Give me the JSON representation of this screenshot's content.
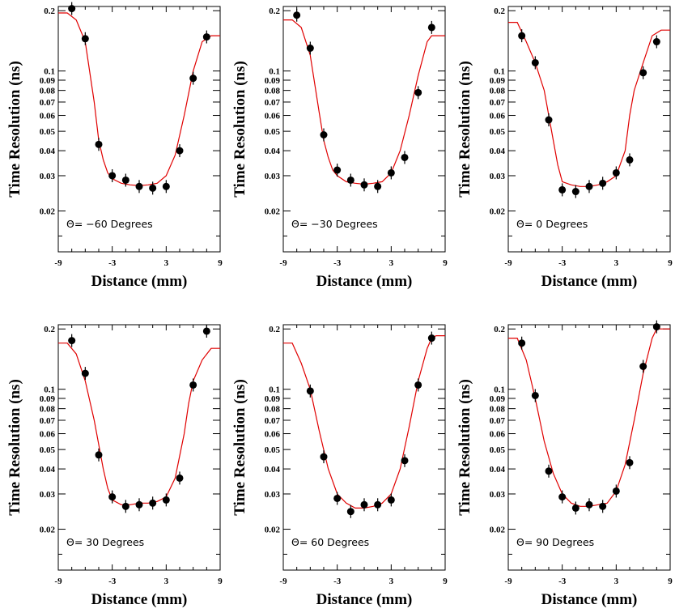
{
  "chart_data": [
    {
      "type": "scatter",
      "annotation": "Θ= −60 Degrees",
      "xlabel": "Distance (mm)",
      "ylabel": "Time Resolution (ns)",
      "xlim": [
        -9,
        9
      ],
      "ylim": [
        0.0125,
        0.21
      ],
      "yscale": "log",
      "xticks": [
        "-9",
        "-3",
        "3",
        "9"
      ],
      "yticks": [
        "0.02",
        "0.03",
        "0.04",
        "0.05",
        "0.06",
        "0.07",
        "0.08",
        "0.09",
        "0.1",
        "0.2"
      ],
      "grid": false,
      "colors": {
        "points": "#000000",
        "fit": "#e00000"
      },
      "series": [
        {
          "type": "points",
          "x": [
            -7.5,
            -6,
            -4.5,
            -3,
            -1.5,
            0,
            1.5,
            3,
            4.5,
            6,
            7.5
          ],
          "y": [
            0.205,
            0.145,
            0.043,
            0.03,
            0.0285,
            0.0265,
            0.026,
            0.0265,
            0.04,
            0.092,
            0.148
          ]
        },
        {
          "type": "fit",
          "x": [
            -9,
            -8,
            -7,
            -6,
            -5,
            -4.5,
            -4,
            -3.5,
            -3,
            -2,
            -1,
            0,
            1,
            2,
            3,
            4,
            5,
            6,
            7,
            8,
            9
          ],
          "y": [
            0.195,
            0.195,
            0.18,
            0.14,
            0.07,
            0.045,
            0.036,
            0.031,
            0.029,
            0.0275,
            0.027,
            0.0268,
            0.027,
            0.0275,
            0.03,
            0.038,
            0.06,
            0.1,
            0.14,
            0.15,
            0.15
          ]
        }
      ]
    },
    {
      "type": "scatter",
      "annotation": "Θ= −30 Degrees",
      "xlabel": "Distance (mm)",
      "ylabel": "Time Resolution (ns)",
      "xlim": [
        -9,
        9
      ],
      "ylim": [
        0.0125,
        0.21
      ],
      "yscale": "log",
      "xticks": [
        "-9",
        "-3",
        "3",
        "9"
      ],
      "yticks": [
        "0.02",
        "0.03",
        "0.04",
        "0.05",
        "0.06",
        "0.07",
        "0.08",
        "0.09",
        "0.1",
        "0.2"
      ],
      "grid": false,
      "colors": {
        "points": "#000000",
        "fit": "#e00000"
      },
      "series": [
        {
          "type": "points",
          "x": [
            -7.5,
            -6,
            -4.5,
            -3,
            -1.5,
            0,
            1.5,
            3,
            4.5,
            6,
            7.5
          ],
          "y": [
            0.19,
            0.13,
            0.048,
            0.032,
            0.0285,
            0.027,
            0.0265,
            0.031,
            0.037,
            0.078,
            0.165
          ]
        },
        {
          "type": "fit",
          "x": [
            -9,
            -8,
            -7,
            -6,
            -5,
            -4.5,
            -4,
            -3.5,
            -3,
            -2,
            -1,
            0,
            1,
            2,
            3,
            4,
            5,
            6,
            7,
            7.5,
            8,
            9
          ],
          "y": [
            0.18,
            0.18,
            0.165,
            0.12,
            0.062,
            0.045,
            0.037,
            0.032,
            0.03,
            0.028,
            0.0275,
            0.0272,
            0.0275,
            0.028,
            0.031,
            0.04,
            0.06,
            0.095,
            0.14,
            0.15,
            0.15,
            0.15
          ]
        }
      ]
    },
    {
      "type": "scatter",
      "annotation": "Θ= 0 Degrees",
      "xlabel": "Distance (mm)",
      "ylabel": "Time Resolution (ns)",
      "xlim": [
        -9,
        9
      ],
      "ylim": [
        0.0125,
        0.21
      ],
      "yscale": "log",
      "xticks": [
        "-9",
        "-3",
        "3",
        "9"
      ],
      "yticks": [
        "0.02",
        "0.03",
        "0.04",
        "0.05",
        "0.06",
        "0.07",
        "0.08",
        "0.09",
        "0.1",
        "0.2"
      ],
      "grid": false,
      "colors": {
        "points": "#000000",
        "fit": "#e00000"
      },
      "series": [
        {
          "type": "points",
          "x": [
            -7.5,
            -6,
            -4.5,
            -3,
            -1.5,
            0,
            1.5,
            3,
            4.5,
            6,
            7.5
          ],
          "y": [
            0.15,
            0.11,
            0.057,
            0.0255,
            0.025,
            0.0265,
            0.0275,
            0.031,
            0.036,
            0.098,
            0.14
          ]
        },
        {
          "type": "fit",
          "x": [
            -9,
            -8,
            -7,
            -6,
            -5,
            -4,
            -3.5,
            -3,
            -2,
            -1,
            0,
            1,
            2,
            3,
            4,
            4.5,
            5,
            6,
            7,
            8,
            9
          ],
          "y": [
            0.175,
            0.175,
            0.14,
            0.11,
            0.08,
            0.045,
            0.034,
            0.028,
            0.027,
            0.0265,
            0.0265,
            0.027,
            0.028,
            0.03,
            0.04,
            0.06,
            0.08,
            0.11,
            0.15,
            0.16,
            0.16
          ]
        }
      ]
    },
    {
      "type": "scatter",
      "annotation": "Θ= 30 Degrees",
      "xlabel": "Distance (mm)",
      "ylabel": "Time Resolution (ns)",
      "xlim": [
        -9,
        9
      ],
      "ylim": [
        0.0125,
        0.21
      ],
      "yscale": "log",
      "xticks": [
        "-9",
        "-3",
        "3",
        "9"
      ],
      "yticks": [
        "0.02",
        "0.03",
        "0.04",
        "0.05",
        "0.06",
        "0.07",
        "0.08",
        "0.09",
        "0.1",
        "0.2"
      ],
      "grid": false,
      "colors": {
        "points": "#000000",
        "fit": "#e00000"
      },
      "series": [
        {
          "type": "points",
          "x": [
            -7.5,
            -6,
            -4.5,
            -3,
            -1.5,
            0,
            1.5,
            3,
            4.5,
            6,
            7.5
          ],
          "y": [
            0.175,
            0.12,
            0.047,
            0.029,
            0.026,
            0.0265,
            0.027,
            0.028,
            0.036,
            0.105,
            0.195
          ]
        },
        {
          "type": "fit",
          "x": [
            -9,
            -8,
            -7,
            -6,
            -5,
            -4,
            -3.5,
            -3,
            -2,
            -1,
            0,
            1,
            2,
            3,
            4,
            5,
            5.5,
            6,
            7,
            8,
            9
          ],
          "y": [
            0.17,
            0.17,
            0.15,
            0.11,
            0.07,
            0.04,
            0.032,
            0.028,
            0.0265,
            0.0265,
            0.027,
            0.027,
            0.0275,
            0.029,
            0.036,
            0.06,
            0.085,
            0.11,
            0.14,
            0.16,
            0.16
          ]
        }
      ]
    },
    {
      "type": "scatter",
      "annotation": "Θ= 60 Degrees",
      "xlabel": "Distance (mm)",
      "ylabel": "Time Resolution (ns)",
      "xlim": [
        -9,
        9
      ],
      "ylim": [
        0.0125,
        0.21
      ],
      "yscale": "log",
      "xticks": [
        "-9",
        "-3",
        "3",
        "9"
      ],
      "yticks": [
        "0.02",
        "0.03",
        "0.04",
        "0.05",
        "0.06",
        "0.07",
        "0.08",
        "0.09",
        "0.1",
        "0.2"
      ],
      "grid": false,
      "colors": {
        "points": "#000000",
        "fit": "#e00000"
      },
      "series": [
        {
          "type": "points",
          "x": [
            -6,
            -4.5,
            -3,
            -1.5,
            0,
            1.5,
            3,
            4.5,
            6,
            7.5
          ],
          "y": [
            0.098,
            0.046,
            0.0285,
            0.0245,
            0.0265,
            0.0265,
            0.028,
            0.044,
            0.105,
            0.18
          ]
        },
        {
          "type": "fit",
          "x": [
            -9,
            -8,
            -7,
            -6,
            -5,
            -4,
            -3,
            -2,
            -1,
            0,
            1,
            2,
            3,
            4,
            5,
            6,
            7,
            7.5,
            8,
            9
          ],
          "y": [
            0.17,
            0.17,
            0.135,
            0.1,
            0.062,
            0.04,
            0.03,
            0.027,
            0.0255,
            0.0255,
            0.026,
            0.027,
            0.03,
            0.04,
            0.065,
            0.11,
            0.16,
            0.18,
            0.185,
            0.185
          ]
        }
      ]
    },
    {
      "type": "scatter",
      "annotation": "Θ= 90 Degrees",
      "xlabel": "Distance (mm)",
      "ylabel": "Time Resolution (ns)",
      "xlim": [
        -9,
        9
      ],
      "ylim": [
        0.0125,
        0.21
      ],
      "yscale": "log",
      "xticks": [
        "-9",
        "-3",
        "3",
        "9"
      ],
      "yticks": [
        "0.02",
        "0.03",
        "0.04",
        "0.05",
        "0.06",
        "0.07",
        "0.08",
        "0.09",
        "0.1",
        "0.2"
      ],
      "grid": false,
      "colors": {
        "points": "#000000",
        "fit": "#e00000"
      },
      "series": [
        {
          "type": "points",
          "x": [
            -7.5,
            -6,
            -4.5,
            -3,
            -1.5,
            0,
            1.5,
            3,
            4.5,
            6,
            7.5
          ],
          "y": [
            0.17,
            0.093,
            0.039,
            0.029,
            0.0255,
            0.0265,
            0.026,
            0.031,
            0.043,
            0.13,
            0.205
          ]
        },
        {
          "type": "fit",
          "x": [
            -9,
            -8,
            -7,
            -6,
            -5,
            -4,
            -3,
            -2,
            -1,
            0,
            1,
            2,
            3,
            4,
            5,
            6,
            7,
            7.5,
            8,
            9
          ],
          "y": [
            0.18,
            0.18,
            0.14,
            0.09,
            0.055,
            0.038,
            0.03,
            0.027,
            0.026,
            0.026,
            0.0265,
            0.027,
            0.031,
            0.042,
            0.07,
            0.12,
            0.18,
            0.2,
            0.2,
            0.2
          ]
        }
      ]
    }
  ]
}
